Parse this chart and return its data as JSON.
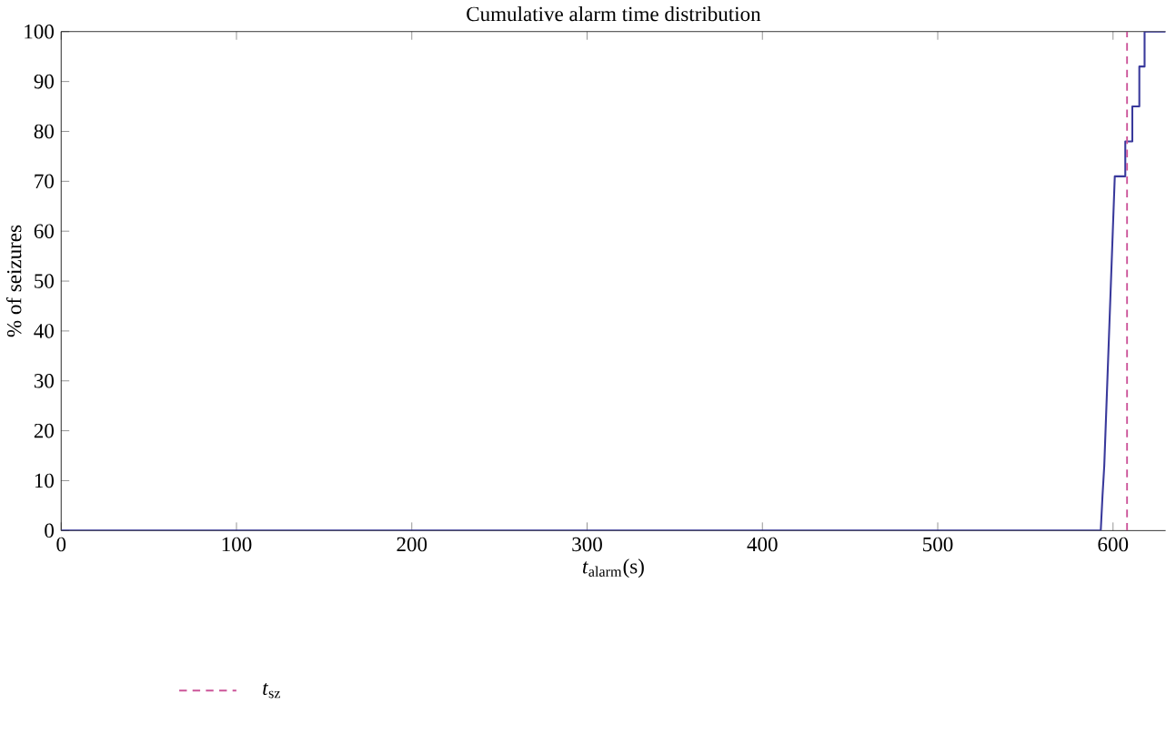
{
  "chart_data": {
    "type": "line",
    "title": "Cumulative alarm time distribution",
    "xlabel": "*t*$_{alarm}$(s)",
    "ylabel": "% of seizures",
    "x": [
      0,
      593,
      594,
      595,
      601,
      607,
      607,
      611,
      611,
      615,
      615,
      618,
      618,
      630
    ],
    "series": [
      {
        "color": "#3a3a9c",
        "values": [
          0,
          0,
          7,
          13,
          71,
          71,
          78,
          78,
          85,
          85,
          93,
          93,
          100,
          100
        ]
      }
    ],
    "xlim": [
      0,
      630
    ],
    "ylim": [
      0,
      100
    ],
    "xticks": [
      0,
      100,
      200,
      300,
      400,
      500,
      600
    ],
    "yticks": [
      0,
      10,
      20,
      30,
      40,
      50,
      60,
      70,
      80,
      90,
      100
    ],
    "ref_lines": [
      {
        "axis": "x",
        "value": 608,
        "label": "*t*$_{sz}$",
        "color": "#cc5599",
        "line_style": "dashed"
      }
    ],
    "legend": "bottom left",
    "grid": false,
    "marker": "none",
    "line_style": "solid"
  }
}
